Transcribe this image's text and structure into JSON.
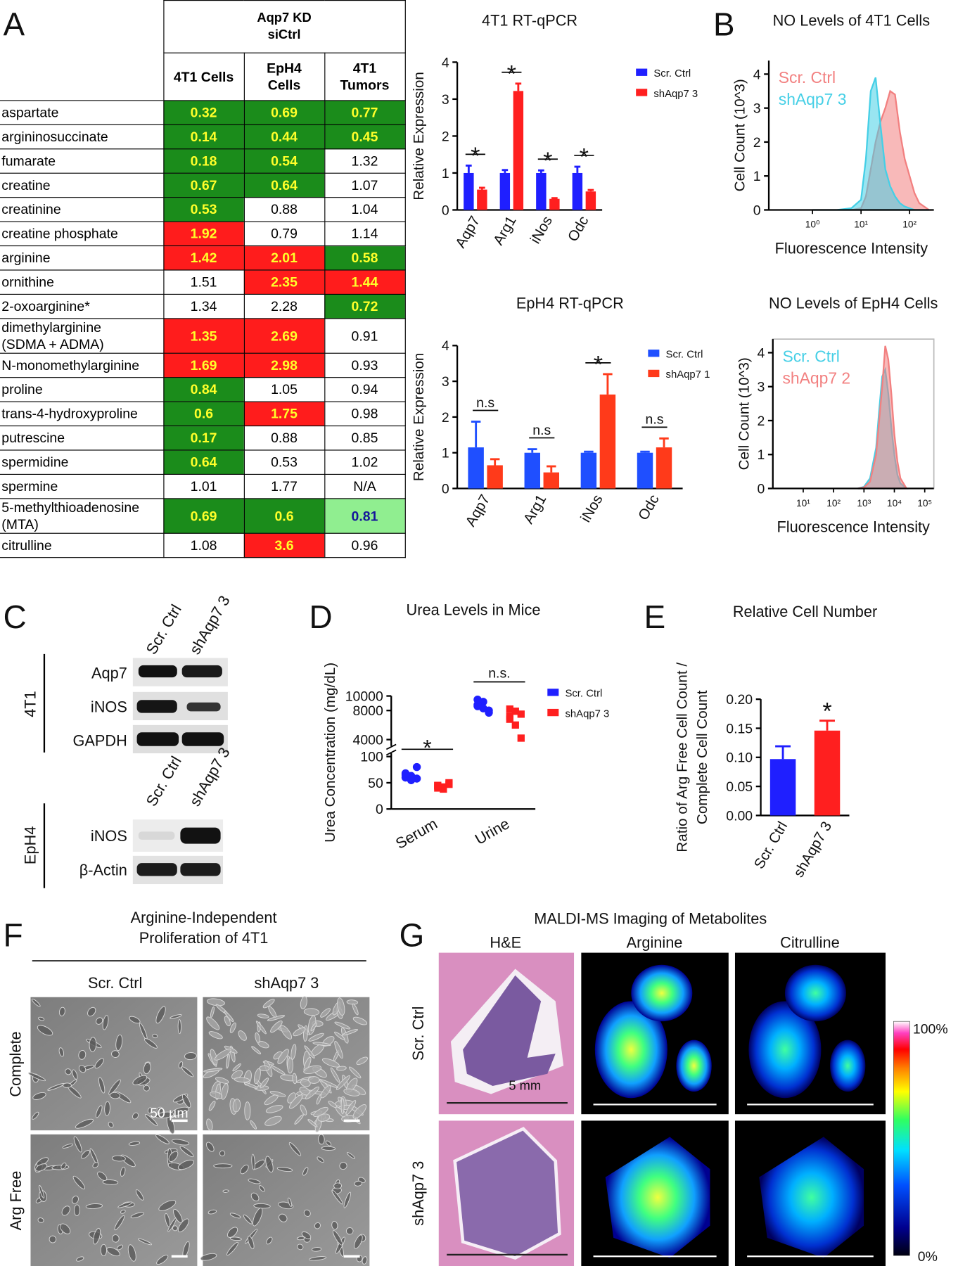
{
  "panel_labels": [
    "A",
    "B",
    "C",
    "D",
    "E",
    "F",
    "G"
  ],
  "table": {
    "header": "Aqp7 KD\nsiCtrl",
    "columns": [
      "4T1 Cells",
      "EpH4\nCells",
      "4T1\nTumors"
    ],
    "rows": [
      {
        "name": "aspartate",
        "values": [
          0.32,
          0.69,
          0.77
        ],
        "fills": [
          "#1b8c1b",
          "#1b8c1b",
          "#1b8c1b"
        ]
      },
      {
        "name": "argininosuccinate",
        "values": [
          0.14,
          0.44,
          0.45
        ],
        "fills": [
          "#1b8c1b",
          "#1b8c1b",
          "#1b8c1b"
        ]
      },
      {
        "name": "fumarate",
        "values": [
          0.18,
          0.54,
          1.32
        ],
        "fills": [
          "#1b8c1b",
          "#1b8c1b",
          "#ffffff"
        ]
      },
      {
        "name": "creatine",
        "values": [
          0.67,
          0.64,
          1.07
        ],
        "fills": [
          "#1b8c1b",
          "#1b8c1b",
          "#ffffff"
        ]
      },
      {
        "name": "creatinine",
        "values": [
          0.53,
          0.88,
          1.04
        ],
        "fills": [
          "#1b8c1b",
          "#ffffff",
          "#ffffff"
        ]
      },
      {
        "name": "creatine phosphate",
        "values": [
          1.92,
          0.79,
          1.14
        ],
        "fills": [
          "#ff1c1c",
          "#ffffff",
          "#ffffff"
        ]
      },
      {
        "name": "arginine",
        "values": [
          1.42,
          2.01,
          0.58
        ],
        "fills": [
          "#ff1c1c",
          "#ff1c1c",
          "#1b8c1b"
        ]
      },
      {
        "name": "ornithine",
        "values": [
          1.51,
          2.35,
          1.44
        ],
        "fills": [
          "#ffffff",
          "#ff1c1c",
          "#ff1c1c"
        ]
      },
      {
        "name": "2-oxoarginine*",
        "values": [
          1.34,
          2.28,
          0.72
        ],
        "fills": [
          "#ffffff",
          "#ffffff",
          "#1b8c1b"
        ]
      },
      {
        "name": "dimethylarginine\n(SDMA + ADMA)",
        "values": [
          1.35,
          2.69,
          0.91
        ],
        "fills": [
          "#ff1c1c",
          "#ff1c1c",
          "#ffffff"
        ]
      },
      {
        "name": "N-monomethylarginine",
        "values": [
          1.69,
          2.98,
          0.93
        ],
        "fills": [
          "#ff1c1c",
          "#ff1c1c",
          "#ffffff"
        ]
      },
      {
        "name": "proline",
        "values": [
          0.84,
          1.05,
          0.94
        ],
        "fills": [
          "#1b8c1b",
          "#ffffff",
          "#ffffff"
        ]
      },
      {
        "name": "trans-4-hydroxyproline",
        "values": [
          0.6,
          1.75,
          0.98
        ],
        "fills": [
          "#1b8c1b",
          "#ff1c1c",
          "#ffffff"
        ]
      },
      {
        "name": "putrescine",
        "values": [
          0.17,
          0.88,
          0.85
        ],
        "fills": [
          "#1b8c1b",
          "#ffffff",
          "#ffffff"
        ]
      },
      {
        "name": "spermidine",
        "values": [
          0.64,
          0.53,
          1.02
        ],
        "fills": [
          "#1b8c1b",
          "#ffffff",
          "#ffffff"
        ]
      },
      {
        "name": "spermine",
        "values": [
          1.01,
          1.77,
          "N/A"
        ],
        "fills": [
          "#ffffff",
          "#ffffff",
          "#ffffff"
        ]
      },
      {
        "name": "5-methylthioadenosine\n(MTA)",
        "values": [
          0.69,
          0.6,
          0.81
        ],
        "fills": [
          "#1b8c1b",
          "#1b8c1b",
          "#90ee90"
        ]
      },
      {
        "name": "citrulline",
        "values": [
          1.08,
          3.6,
          0.96
        ],
        "fills": [
          "#ffffff",
          "#ff1c1c",
          "#ffffff"
        ]
      }
    ]
  },
  "chart_data": [
    {
      "type": "bar",
      "title": "4T1 RT-qPCR",
      "ylabel": "Relative Expression",
      "categories": [
        "Aqp7",
        "Arg1",
        "iNos",
        "Odc"
      ],
      "series": [
        {
          "name": "Scr. Ctrl",
          "color": "#1f1fff",
          "values": [
            1.0,
            1.0,
            1.0,
            1.0
          ],
          "errors": [
            0.2,
            0.08,
            0.07,
            0.17
          ]
        },
        {
          "name": "shAqp7 3",
          "color": "#ff1f1f",
          "values": [
            0.55,
            3.22,
            0.3,
            0.5
          ],
          "errors": [
            0.05,
            0.2,
            0.02,
            0.04
          ]
        }
      ],
      "annotations": [
        "*",
        "*",
        "*",
        "*"
      ],
      "ylim": [
        0,
        4
      ],
      "yticks": [
        0,
        1,
        2,
        3,
        4
      ],
      "legend": "upper right"
    },
    {
      "type": "bar",
      "title": "EpH4 RT-qPCR",
      "ylabel": "Relative Expression",
      "categories": [
        "Aqp7",
        "Arg1",
        "iNos",
        "Odc"
      ],
      "series": [
        {
          "name": "Scr. Ctrl",
          "color": "#1f4fff",
          "values": [
            1.15,
            1.0,
            1.0,
            1.0
          ],
          "errors": [
            0.72,
            0.1,
            0.03,
            0.03
          ]
        },
        {
          "name": "shAqp7 1",
          "color": "#ff3a1a",
          "values": [
            0.65,
            0.45,
            2.63,
            1.15
          ],
          "errors": [
            0.17,
            0.17,
            0.57,
            0.25
          ]
        }
      ],
      "annotations": [
        "n.s",
        "n.s",
        "*",
        "n.s"
      ],
      "ylim": [
        0,
        4
      ],
      "yticks": [
        0,
        1,
        2,
        3,
        4
      ],
      "legend": "upper right"
    },
    {
      "type": "area",
      "title": "NO Levels of 4T1 Cells",
      "xlabel": "Fluorescence Intensity",
      "ylabel": "Cell Count (10^3)",
      "x": [
        0,
        0.5,
        0.8,
        1.0,
        1.1,
        1.2,
        1.3,
        1.4,
        1.5,
        1.6,
        1.7,
        1.8,
        1.9,
        2.0,
        2.1,
        2.2,
        2.4
      ],
      "series": [
        {
          "name": "Scr. Ctrl",
          "color": "#f28080",
          "values": [
            0,
            0,
            0,
            0.05,
            0.4,
            1.2,
            2.0,
            2.6,
            3.0,
            3.5,
            3.4,
            2.3,
            1.5,
            1.0,
            0.5,
            0.2,
            0
          ]
        },
        {
          "name": "shAqp7 3",
          "color": "#45cfe6",
          "values": [
            0,
            0,
            0.05,
            0.3,
            1.5,
            3.5,
            3.9,
            2.5,
            1.2,
            0.7,
            0.4,
            0.2,
            0.1,
            0.05,
            0,
            0,
            0
          ]
        }
      ],
      "xlim": [
        -0.9,
        2.5
      ],
      "xticks": [
        {
          "value": 0,
          "label": "10⁰"
        },
        {
          "value": 1,
          "label": "10¹"
        },
        {
          "value": 2,
          "label": "10²"
        }
      ],
      "ylim": [
        0,
        4.4
      ],
      "yticks": [
        0,
        1,
        2,
        3,
        4
      ],
      "legend": "upper left"
    },
    {
      "type": "area",
      "title": "NO Levels of EpH4 Cells",
      "xlabel": "Fluorescence Intensity",
      "ylabel": "Cell Count (10^3)",
      "x": [
        2.8,
        3.0,
        3.2,
        3.4,
        3.5,
        3.6,
        3.7,
        3.8,
        3.9,
        4.0,
        4.1,
        4.2,
        4.4
      ],
      "series": [
        {
          "name": "Scr. Ctrl",
          "color": "#45cfe6",
          "values": [
            0,
            0.05,
            0.3,
            1.2,
            2.3,
            3.3,
            3.5,
            2.8,
            1.8,
            1.0,
            0.4,
            0.15,
            0
          ]
        },
        {
          "name": "shAqp7 2",
          "color": "#f28080",
          "values": [
            0,
            0.03,
            0.2,
            1.0,
            2.0,
            3.0,
            4.2,
            3.8,
            2.8,
            1.6,
            0.8,
            0.3,
            0
          ]
        }
      ],
      "xlim": [
        -0.0,
        5.3
      ],
      "xticks": [
        {
          "value": 1,
          "label": "10¹"
        },
        {
          "value": 2,
          "label": "10²"
        },
        {
          "value": 3,
          "label": "10³"
        },
        {
          "value": 4,
          "label": "10⁴"
        },
        {
          "value": 5,
          "label": "10⁵"
        }
      ],
      "ylim": [
        0,
        4.4
      ],
      "yticks": [
        0,
        1,
        2,
        3,
        4
      ],
      "legend": "upper left"
    },
    {
      "type": "scatter",
      "title": "Urea Levels in Mice",
      "ylabel": "Urea Concentration (mg/dL)",
      "categories": [
        "Serum",
        "Urine"
      ],
      "series": [
        {
          "name": "Scr. Ctrl",
          "color": "#1f1fff",
          "marker": "circle",
          "values": [
            [
              60,
              63,
              58,
              65,
              55,
              80,
              68
            ],
            [
              8600,
              9200,
              8000,
              8800,
              8300,
              7700,
              9500
            ]
          ]
        },
        {
          "name": "shAqp7 3",
          "color": "#ff1f1f",
          "marker": "square",
          "values": [
            [
              45,
              42,
              47,
              40,
              38,
              50,
              44
            ],
            [
              8200,
              7900,
              7500,
              6800,
              6000,
              4200,
              7200
            ]
          ]
        }
      ],
      "annotations": [
        "*",
        "n.s."
      ],
      "ylim": [
        0,
        100
      ],
      "yticks": [
        0,
        50,
        100
      ],
      "upper_ylim": [
        4000,
        10000
      ],
      "upper_yticks": [
        4000,
        8000,
        10000
      ],
      "legend": "right"
    },
    {
      "type": "bar",
      "title": "Relative Cell Number",
      "ylabel": [
        "Ratio of Arg Free Cell Count /",
        "Complete Cell Count"
      ],
      "categories": [
        "Scr. Ctrl",
        "shAqp7 3"
      ],
      "values": [
        0.097,
        0.146
      ],
      "errors": [
        0.022,
        0.017
      ],
      "colors": [
        "#1f1fff",
        "#ff1f1f"
      ],
      "annotations": [
        null,
        "*"
      ],
      "ylim": [
        0,
        0.2
      ],
      "yticks": [
        {
          "value": 0,
          "label": "0.00"
        },
        {
          "value": 0.05,
          "label": "0.05"
        },
        {
          "value": 0.1,
          "label": "0.10"
        },
        {
          "value": 0.15,
          "label": "0.15"
        },
        {
          "value": 0.2,
          "label": "0.20"
        }
      ]
    }
  ],
  "western_blot": {
    "groups": [
      {
        "name": "4T1",
        "lanes": [
          "Scr. Ctrl",
          "shAqp7 3"
        ],
        "bands": [
          "Aqp7",
          "iNOS",
          "GAPDH"
        ]
      },
      {
        "name": "EpH4",
        "lanes": [
          "Scr. Ctrl",
          "shAqp7 3"
        ],
        "bands": [
          "iNOS",
          "β-Actin"
        ]
      }
    ]
  },
  "micrographs": {
    "title": [
      "Arginine-Independent",
      "Proliferation of 4T1"
    ],
    "columns": [
      "Scr. Ctrl",
      "shAqp7 3"
    ],
    "rows": [
      "Complete",
      "Arg Free"
    ],
    "scale_bar": "50 µm"
  },
  "maldi": {
    "title": "MALDI-MS Imaging of Metabolites",
    "columns": [
      "H&E",
      "Arginine",
      "Citrulline"
    ],
    "rows": [
      "Scr. Ctrl",
      "shAqp7 3"
    ],
    "scale_bar": "5 mm",
    "colorbar": {
      "max_label": "100%",
      "min_label": "0%"
    }
  }
}
